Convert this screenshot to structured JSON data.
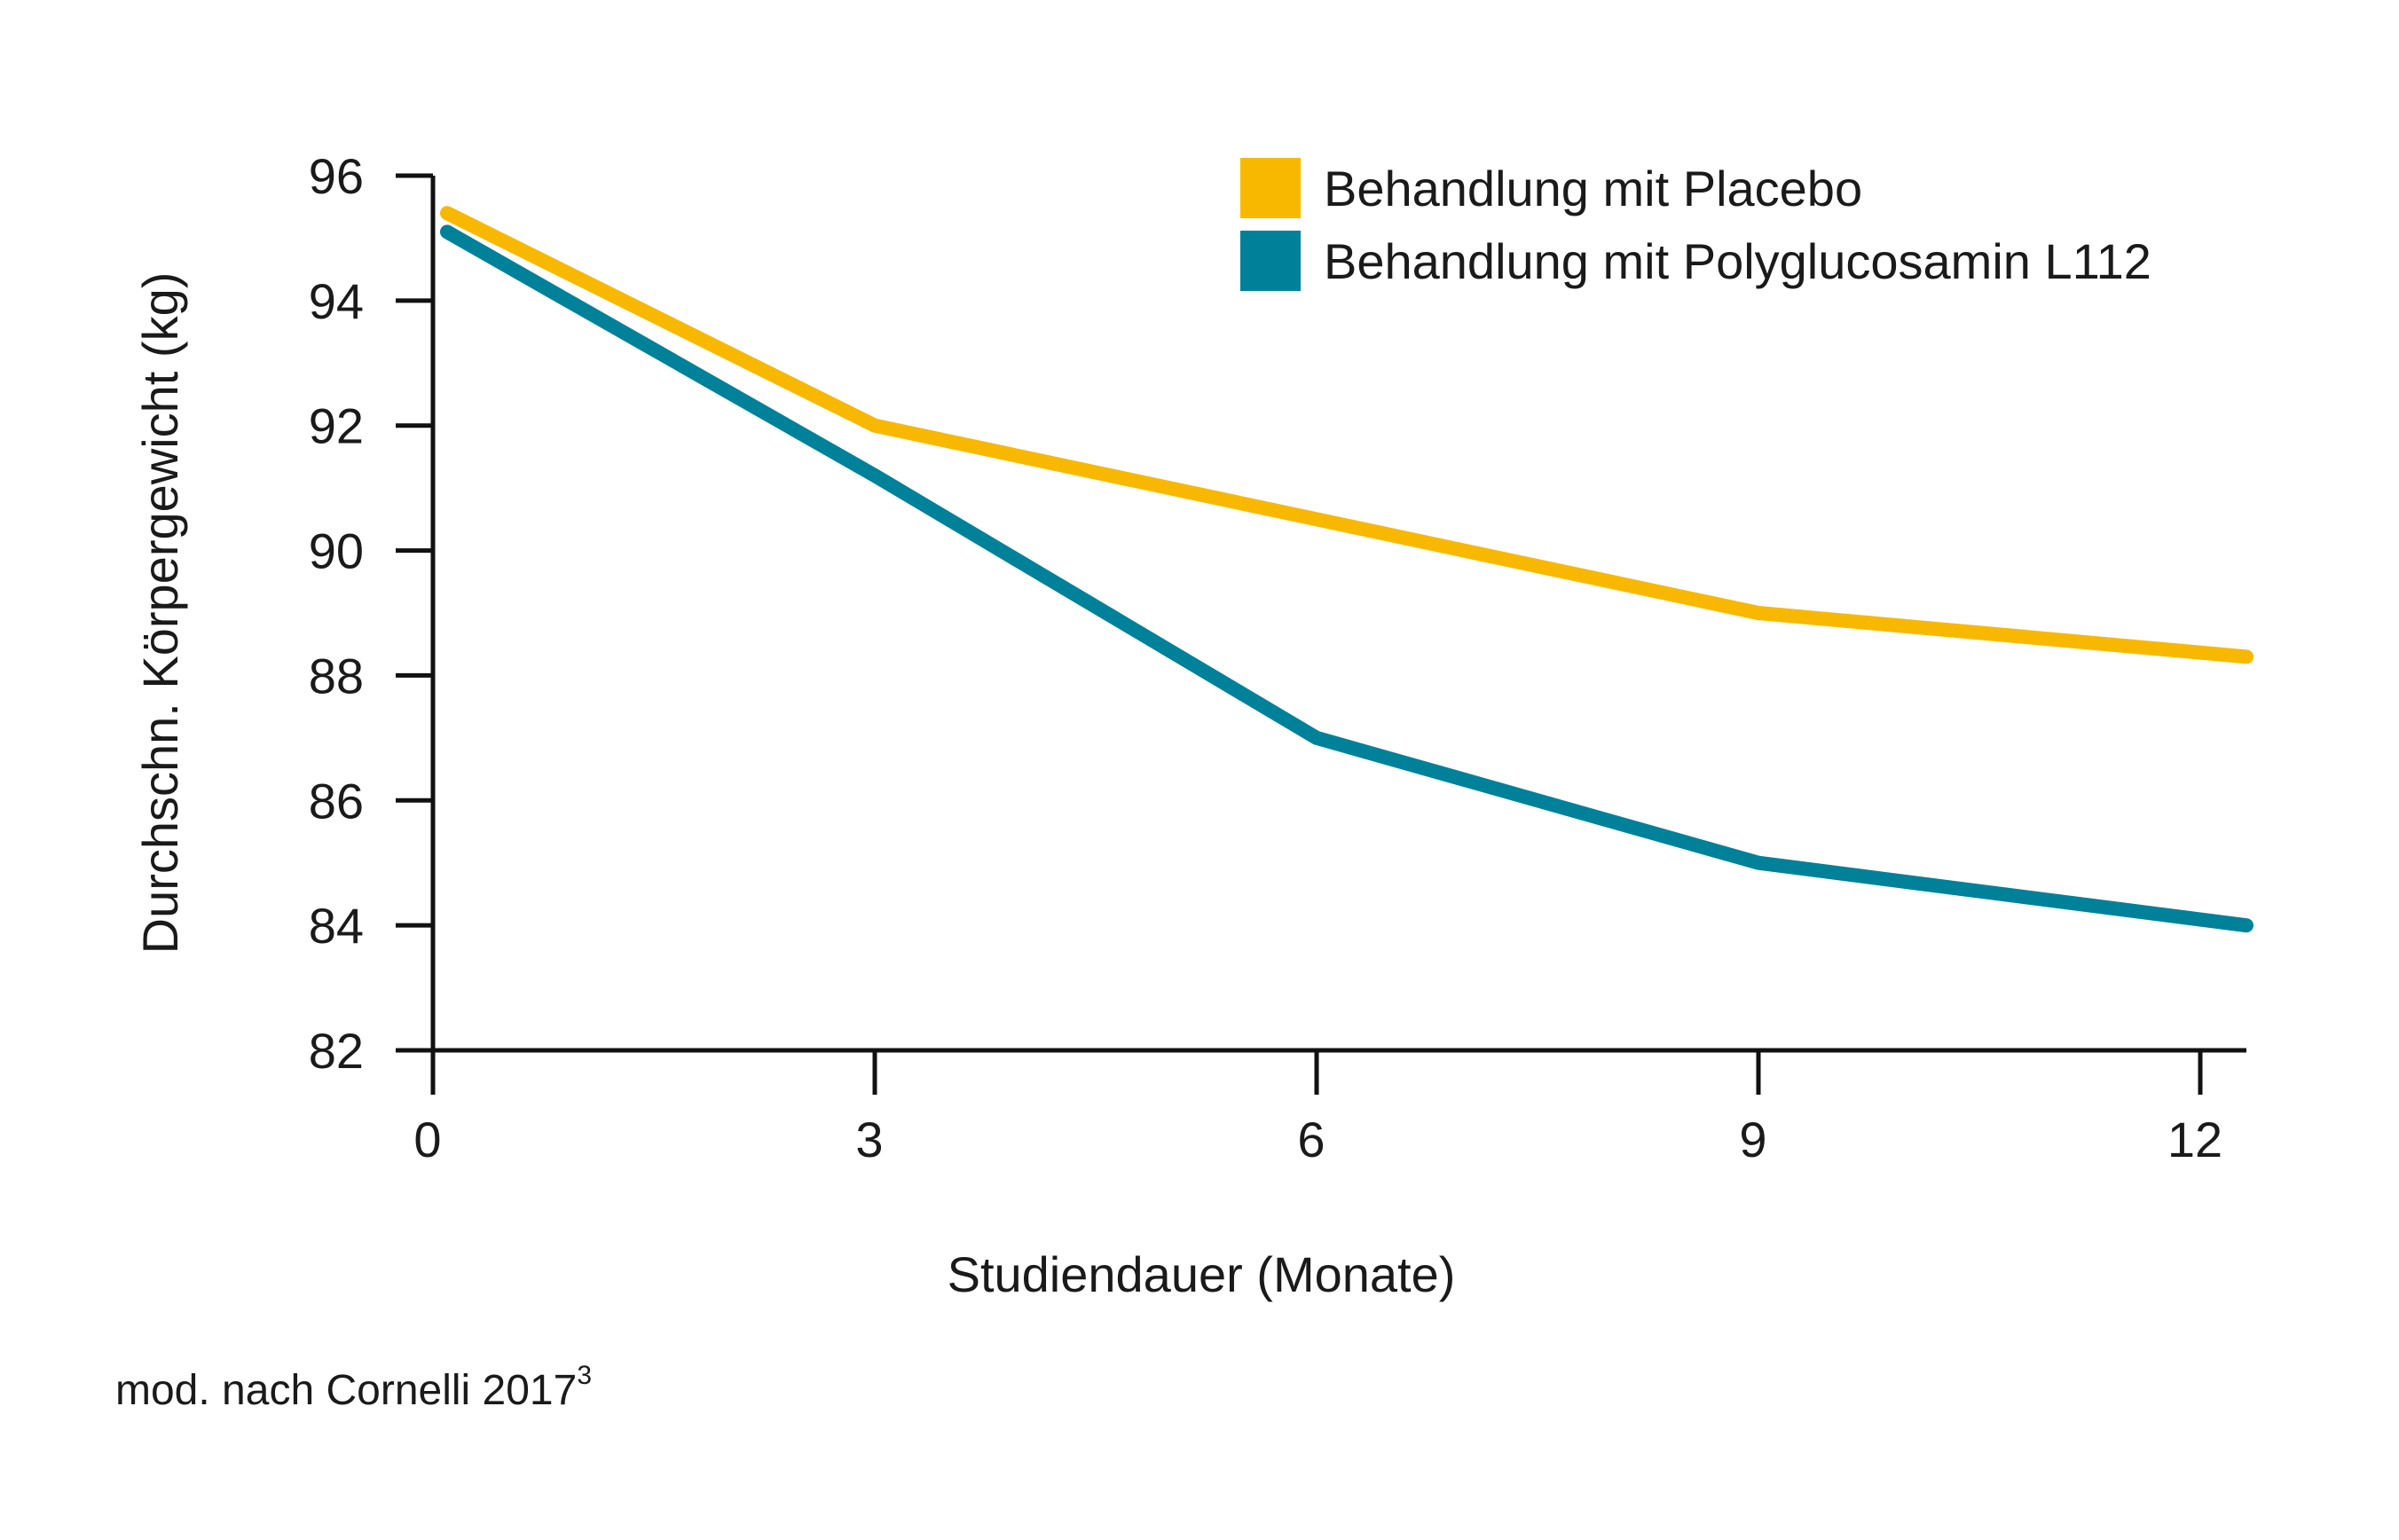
{
  "chart_data": {
    "type": "line",
    "x": [
      0,
      3,
      6,
      9,
      12
    ],
    "xlabel": "Studiendauer (Monate)",
    "ylabel": "Durchschn. Körpergewicht (kg)",
    "xlim": [
      0,
      12
    ],
    "ylim": [
      82,
      96
    ],
    "xticks": [
      "0",
      "3",
      "6",
      "9",
      "12"
    ],
    "yticks": [
      "82",
      "84",
      "86",
      "88",
      "90",
      "92",
      "94",
      "96"
    ],
    "grid": false,
    "legend_position": "top-right",
    "series": [
      {
        "name": "Behandlung mit Placebo",
        "color": "#F9B800",
        "values": [
          95.4,
          92.0,
          90.5,
          89.0,
          88.3
        ]
      },
      {
        "name": "Behandlung mit Polyglucosamin L112",
        "color": "#00819A",
        "values": [
          95.1,
          91.2,
          87.0,
          85.0,
          84.0
        ]
      }
    ]
  },
  "source": {
    "text": "mod. nach Cornelli 2017",
    "superscript": "3"
  }
}
